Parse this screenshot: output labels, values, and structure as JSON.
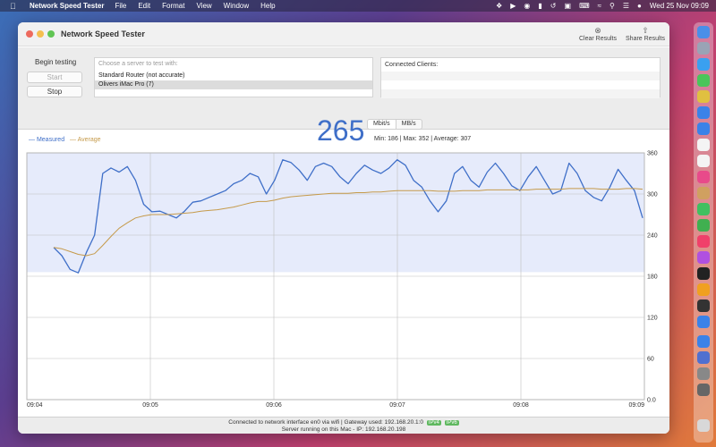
{
  "menubar": {
    "app_name": "Network Speed Tester",
    "menus": [
      "File",
      "Edit",
      "Format",
      "View",
      "Window",
      "Help"
    ],
    "clock": "Wed 25 Nov  09:09"
  },
  "window": {
    "title": "Network Speed Tester",
    "toolbar": {
      "clear_label": "Clear Results",
      "share_label": "Share Results"
    }
  },
  "controls": {
    "begin_label": "Begin testing",
    "start_label": "Start",
    "stop_label": "Stop",
    "server_placeholder": "Choose a server to test with:",
    "servers": [
      "Standard Router (not accurate)",
      "Olivers iMac Pro (7)"
    ],
    "clients_label": "Connected Clients:"
  },
  "readout": {
    "speed": "265",
    "unit_mbit": "Mbit/s",
    "unit_mbyte": "MB/s",
    "stats": "Min: 186 | Max: 352 | Average: 307"
  },
  "legend": {
    "measured": "Measured",
    "average": "Average"
  },
  "colors": {
    "measured": "#3f6fc8",
    "average": "#c59a4a",
    "band": "#e6ebfb"
  },
  "chart_data": {
    "type": "line",
    "ylim": [
      0,
      360
    ],
    "y_ticks": [
      "0.0",
      "60",
      "120",
      "180",
      "240",
      "300",
      "360"
    ],
    "x_ticks": [
      "09:04",
      "09:05",
      "09:06",
      "09:07",
      "09:08",
      "09:09"
    ],
    "band": [
      186,
      360
    ],
    "series": [
      {
        "name": "Measured",
        "values": [
          222,
          210,
          190,
          185,
          215,
          240,
          330,
          338,
          332,
          340,
          320,
          285,
          274,
          275,
          270,
          265,
          275,
          288,
          290,
          295,
          300,
          305,
          315,
          320,
          330,
          325,
          300,
          320,
          350,
          346,
          335,
          320,
          340,
          345,
          340,
          325,
          315,
          330,
          342,
          335,
          330,
          338,
          350,
          342,
          320,
          310,
          290,
          274,
          290,
          330,
          340,
          320,
          310,
          332,
          345,
          330,
          312,
          305,
          325,
          340,
          320,
          300,
          305,
          345,
          330,
          305,
          295,
          290,
          310,
          336,
          320,
          305,
          265
        ]
      },
      {
        "name": "Average",
        "values": [
          222,
          220,
          216,
          212,
          210,
          213,
          225,
          238,
          250,
          258,
          265,
          268,
          270,
          270,
          270,
          271,
          272,
          273,
          275,
          276,
          277,
          279,
          281,
          284,
          287,
          289,
          289,
          291,
          294,
          296,
          297,
          298,
          299,
          300,
          301,
          301,
          301,
          302,
          302,
          303,
          303,
          304,
          305,
          305,
          305,
          305,
          305,
          304,
          304,
          304,
          305,
          305,
          305,
          306,
          306,
          306,
          306,
          306,
          306,
          307,
          307,
          307,
          307,
          308,
          308,
          308,
          308,
          307,
          307,
          307,
          308,
          308,
          307
        ]
      }
    ]
  },
  "status": {
    "line1": "Connected to network interface en0 via wifi | Gateway used: 192.168.20.1:0",
    "ipv4": "IPv4",
    "ipv6": "IPv6",
    "line2": "Server running on this Mac - IP: 192.168.20.198"
  }
}
